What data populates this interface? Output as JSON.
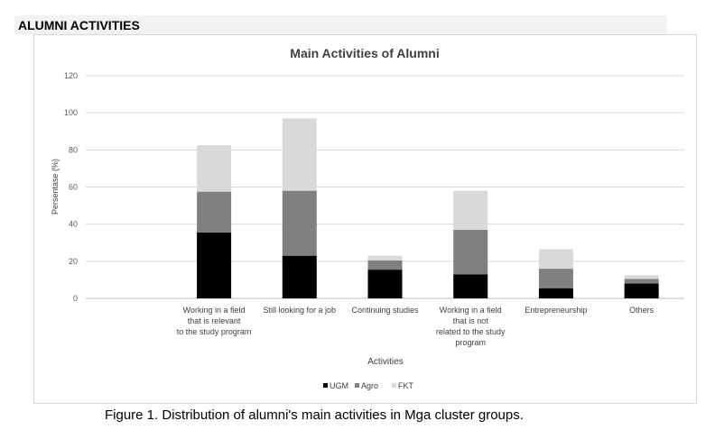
{
  "section_title": "ALUMNI ACTIVITIES",
  "caption": "Figure 1. Distribution of alumni's main activities in Mga cluster groups.",
  "colors": {
    "UGM": "#000000",
    "Agro": "#808080",
    "FKT": "#d9d9d9",
    "grid": "#d9d9d9"
  },
  "chart_data": {
    "type": "bar",
    "stacked": true,
    "title": "Main Activities of Alumni",
    "xlabel": "Activities",
    "ylabel": "Persentase (%)",
    "ylim": [
      0,
      120
    ],
    "yticks": [
      "0",
      "20",
      "40",
      "60",
      "80",
      "100",
      "120"
    ],
    "categories": [
      "",
      "Working in a field|that is relevant|to the study program",
      "Still looking for a job",
      "Continuing studies",
      "Working in a field|that is not|related to the study|program",
      "Entrepreneurship",
      "Others"
    ],
    "series": [
      {
        "name": "UGM",
        "values": [
          0,
          35.5,
          23,
          15.5,
          13,
          5.5,
          8
        ]
      },
      {
        "name": "Agro",
        "values": [
          0,
          22,
          35,
          5,
          24,
          10.5,
          2.5
        ]
      },
      {
        "name": "FKT",
        "values": [
          0,
          25,
          39,
          2.5,
          21,
          10.5,
          2
        ]
      }
    ],
    "legend_position": "bottom",
    "grid": true
  }
}
